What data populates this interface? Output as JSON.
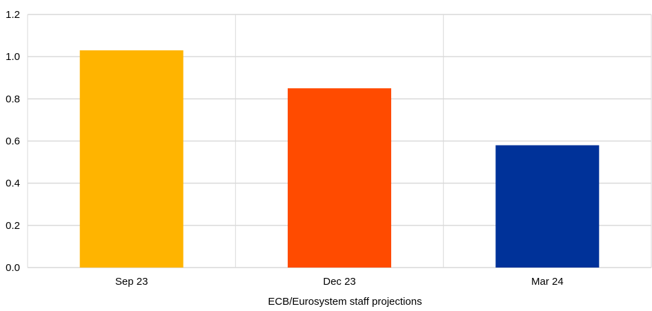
{
  "chart_data": {
    "type": "bar",
    "categories": [
      "Sep 23",
      "Dec 23",
      "Mar 24"
    ],
    "values": [
      1.03,
      0.85,
      0.58
    ],
    "colors": [
      "#FFB400",
      "#FF4B00",
      "#003299"
    ],
    "title": "",
    "xlabel": "ECB/Eurosystem  staff projections",
    "ylabel": "",
    "ylim": [
      0,
      1.2
    ],
    "yticks": [
      "0.0",
      "0.2",
      "0.4",
      "0.6",
      "0.8",
      "1.0",
      "1.2"
    ],
    "grid": true,
    "legend": "none"
  }
}
